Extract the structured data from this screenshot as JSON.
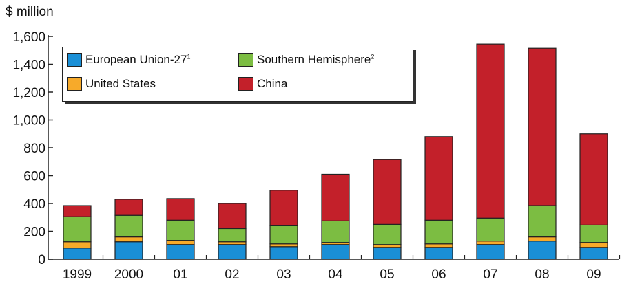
{
  "unit_label": "$ million",
  "colors": {
    "eu": "#1a8fd6",
    "us": "#f7aa2a",
    "sh": "#7cbd42",
    "china": "#c3202a"
  },
  "legend": {
    "eu": "European Union-27",
    "eu_note": "1",
    "sh": "Southern Hemisphere",
    "sh_note": "2",
    "us": "United States",
    "china": "China"
  },
  "chart_data": {
    "type": "bar",
    "stacked": true,
    "categories": [
      "1999",
      "2000",
      "01",
      "02",
      "03",
      "04",
      "05",
      "06",
      "07",
      "08",
      "09"
    ],
    "series": [
      {
        "name": "European Union-27",
        "key": "eu",
        "values": [
          80,
          125,
          105,
          105,
          90,
          105,
          85,
          85,
          105,
          130,
          85
        ]
      },
      {
        "name": "United States",
        "key": "us",
        "values": [
          45,
          35,
          30,
          20,
          20,
          15,
          20,
          25,
          25,
          30,
          35
        ]
      },
      {
        "name": "Southern Hemisphere",
        "key": "sh",
        "values": [
          180,
          155,
          145,
          95,
          130,
          155,
          145,
          170,
          165,
          225,
          125
        ]
      },
      {
        "name": "China",
        "key": "china",
        "values": [
          80,
          115,
          155,
          180,
          255,
          335,
          465,
          600,
          1250,
          1130,
          655
        ]
      }
    ],
    "ylim": [
      0,
      1600
    ],
    "yticks": [
      0,
      200,
      400,
      600,
      800,
      1000,
      1200,
      1400,
      1600
    ],
    "ytick_labels": [
      "0",
      "200",
      "400",
      "600",
      "800",
      "1,000",
      "1,200",
      "1,400",
      "1,600"
    ],
    "grid": false,
    "legend_position": "top-left"
  }
}
